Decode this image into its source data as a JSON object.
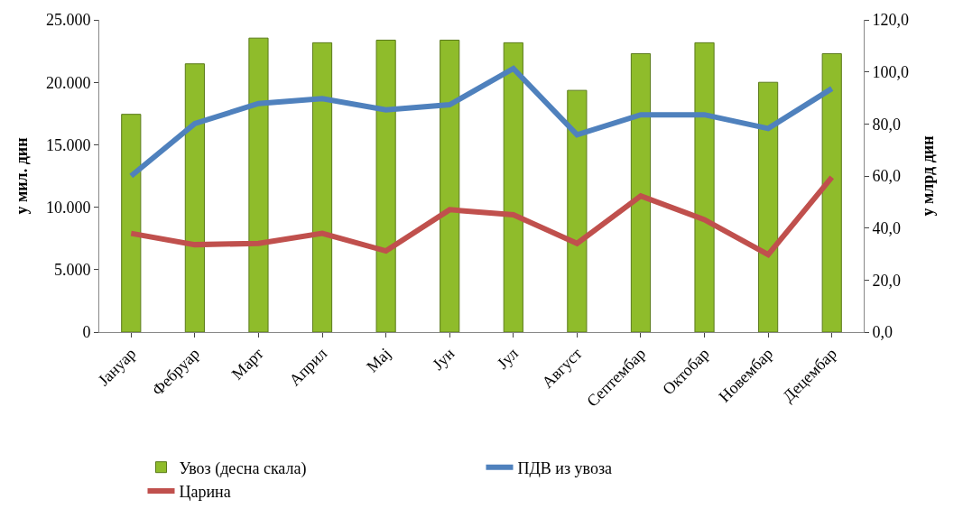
{
  "chart_data": {
    "type": "bar",
    "ylabel": "у мил. дин",
    "y2label": "у млрд дин",
    "categories": [
      "Јануар",
      "Фебруар",
      "Март",
      "Април",
      "Мај",
      "Јун",
      "Јул",
      "Август",
      "Септембар",
      "Октобар",
      "Новембар",
      "Децембар"
    ],
    "series": [
      {
        "name": "Увоз (десна скала)",
        "axis": "y2",
        "color": "#8fbc2b",
        "values": [
          83.7,
          103.1,
          113.0,
          111.2,
          112.2,
          112.2,
          111.2,
          92.9,
          107.0,
          111.2,
          96.0,
          107.0
        ]
      },
      {
        "name": "ПДВ из увоза",
        "type": "line",
        "color": "#4f81bd",
        "values": [
          12500,
          16700,
          18300,
          18700,
          17800,
          18200,
          21100,
          15800,
          17400,
          17400,
          16300,
          19500
        ]
      },
      {
        "name": "Царина",
        "type": "line",
        "color": "#c0504d",
        "values": [
          7900,
          7000,
          7100,
          7900,
          6500,
          9800,
          9400,
          7100,
          10900,
          9000,
          6200,
          12400
        ]
      }
    ],
    "ylim": [
      0,
      25000
    ],
    "yticks": [
      {
        "value": 0,
        "label": "0"
      },
      {
        "value": 5000,
        "label": "5.000"
      },
      {
        "value": 10000,
        "label": "10.000"
      },
      {
        "value": 15000,
        "label": "15.000"
      },
      {
        "value": 20000,
        "label": "20.000"
      },
      {
        "value": 25000,
        "label": "25.000"
      }
    ],
    "y2lim": [
      0,
      120
    ],
    "y2ticks": [
      {
        "value": 0,
        "label": "0,0"
      },
      {
        "value": 20,
        "label": "20,0"
      },
      {
        "value": 40,
        "label": "40,0"
      },
      {
        "value": 60,
        "label": "60,0"
      },
      {
        "value": 80,
        "label": "80,0"
      },
      {
        "value": 100,
        "label": "100,0"
      },
      {
        "value": 120,
        "label": "120,0"
      }
    ],
    "grid": false,
    "legend": "bottom",
    "marker": "none",
    "line_style": "solid"
  }
}
